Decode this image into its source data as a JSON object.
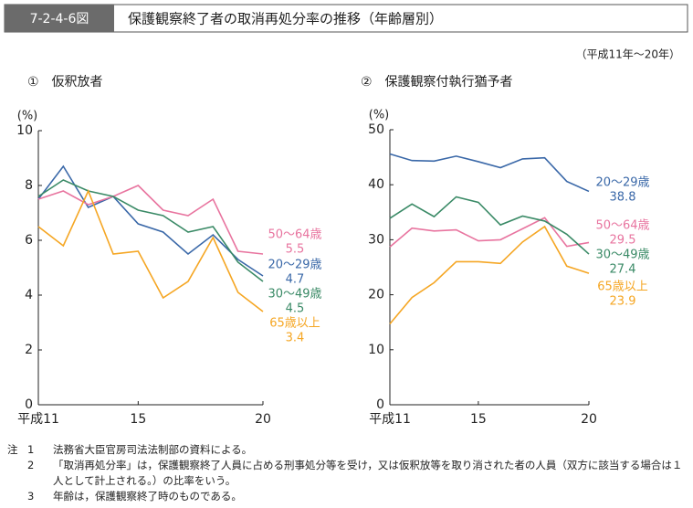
{
  "header": {
    "figure_no": "7-2-4-6図",
    "title": "保護観察終了者の取消再処分率の推移（年齢層別）",
    "period": "（平成11年～20年）"
  },
  "chart_data": [
    {
      "type": "line",
      "title": "①　仮釈放者",
      "ylabel": "(%)",
      "x": [
        11,
        12,
        13,
        14,
        15,
        16,
        17,
        18,
        19,
        20
      ],
      "xlim": [
        11,
        20
      ],
      "xticks": [
        {
          "value": 11,
          "label": "平成11"
        },
        15,
        20
      ],
      "ylim": [
        0,
        10
      ],
      "yticks": [
        0,
        2,
        4,
        6,
        8,
        10
      ],
      "series": [
        {
          "name": "20～29歳",
          "color": "#3a68a8",
          "values": [
            7.5,
            8.7,
            7.2,
            7.6,
            6.6,
            6.3,
            5.5,
            6.2,
            5.3,
            4.7
          ]
        },
        {
          "name": "50～64歳",
          "color": "#e8749f",
          "values": [
            7.5,
            7.8,
            7.3,
            7.6,
            8.0,
            7.1,
            6.9,
            7.5,
            5.6,
            5.5
          ]
        },
        {
          "name": "30～49歳",
          "color": "#3a8a66",
          "values": [
            7.6,
            8.2,
            7.8,
            7.6,
            7.1,
            6.9,
            6.3,
            6.5,
            5.2,
            4.5
          ]
        },
        {
          "name": "65歳以上",
          "color": "#f5a623",
          "values": [
            6.5,
            5.8,
            7.8,
            5.5,
            5.6,
            3.9,
            4.5,
            6.1,
            4.1,
            3.4
          ]
        }
      ]
    },
    {
      "type": "line",
      "title": "②　保護観察付執行猶予者",
      "ylabel": "(%)",
      "x": [
        11,
        12,
        13,
        14,
        15,
        16,
        17,
        18,
        19,
        20
      ],
      "xlim": [
        11,
        20
      ],
      "xticks": [
        {
          "value": 11,
          "label": "平成11"
        },
        15,
        20
      ],
      "ylim": [
        0,
        50
      ],
      "yticks": [
        0,
        10,
        20,
        30,
        40,
        50
      ],
      "series": [
        {
          "name": "20～29歳",
          "color": "#3a68a8",
          "values": [
            45.6,
            44.4,
            44.3,
            45.2,
            44.2,
            43.1,
            44.7,
            44.9,
            40.6,
            38.8
          ]
        },
        {
          "name": "50～64歳",
          "color": "#e8749f",
          "values": [
            28.7,
            32.1,
            31.6,
            31.8,
            29.8,
            30.0,
            32.0,
            34.0,
            28.8,
            29.5
          ]
        },
        {
          "name": "30～49歳",
          "color": "#3a8a66",
          "values": [
            33.9,
            36.5,
            34.2,
            37.8,
            36.8,
            32.7,
            34.3,
            33.4,
            31.0,
            27.4
          ]
        },
        {
          "name": "65歳以上",
          "color": "#f5a623",
          "values": [
            14.7,
            19.5,
            22.2,
            26.0,
            26.0,
            25.7,
            29.6,
            32.4,
            25.2,
            23.9
          ]
        }
      ]
    }
  ],
  "notes": {
    "label": "注",
    "items": [
      {
        "no": "1",
        "text": "法務省大臣官房司法法制部の資料による。"
      },
      {
        "no": "2",
        "text": "「取消再処分率」は，保護観察終了人員に占める刑事処分等を受け，又は仮釈放等を取り消された者の人員（双方に該当する場合は１人として計上される。）の比率をいう。"
      },
      {
        "no": "3",
        "text": "年齢は，保護観察終了時のものである。"
      }
    ]
  }
}
